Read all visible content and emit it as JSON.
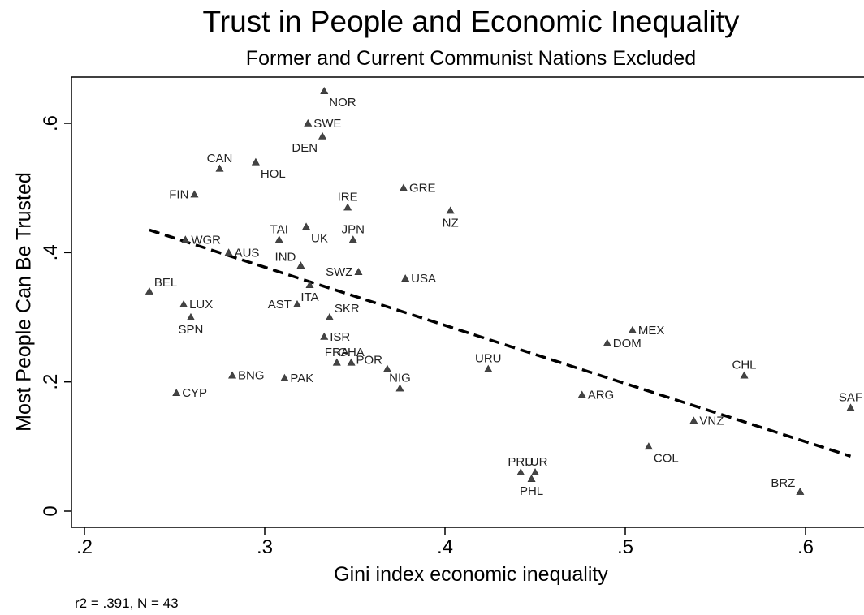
{
  "chart_data": {
    "type": "scatter",
    "title": "Trust in People and Economic Inequality",
    "subtitle": "Former and Current Communist Nations Excluded",
    "xlabel": "Gini index economic inequality",
    "ylabel": "Most People Can Be Trusted",
    "xlim": [
      0.18,
      0.63
    ],
    "ylim": [
      -0.03,
      0.67
    ],
    "xticks": [
      {
        "value": 0.2,
        "label": ".2"
      },
      {
        "value": 0.3,
        "label": ".3"
      },
      {
        "value": 0.4,
        "label": ".4"
      },
      {
        "value": 0.5,
        "label": ".5"
      },
      {
        "value": 0.6,
        "label": ".6"
      }
    ],
    "yticks": [
      {
        "value": 0,
        "label": "0"
      },
      {
        "value": 0.2,
        "label": ".2"
      },
      {
        "value": 0.4,
        "label": ".4"
      },
      {
        "value": 0.6,
        "label": ".6"
      }
    ],
    "grid": false,
    "points": [
      {
        "label": "NOR",
        "x": 0.333,
        "y": 0.65,
        "pos": "br"
      },
      {
        "label": "SWE",
        "x": 0.324,
        "y": 0.6,
        "pos": "r"
      },
      {
        "label": "DEN",
        "x": 0.332,
        "y": 0.58,
        "pos": "bl"
      },
      {
        "label": "CAN",
        "x": 0.275,
        "y": 0.53,
        "pos": "t"
      },
      {
        "label": "HOL",
        "x": 0.295,
        "y": 0.54,
        "pos": "br"
      },
      {
        "label": "FIN",
        "x": 0.261,
        "y": 0.49,
        "pos": "l"
      },
      {
        "label": "IRE",
        "x": 0.346,
        "y": 0.47,
        "pos": "t"
      },
      {
        "label": "GRE",
        "x": 0.377,
        "y": 0.5,
        "pos": "r"
      },
      {
        "label": "NZ",
        "x": 0.403,
        "y": 0.465,
        "pos": "b"
      },
      {
        "label": "TAI",
        "x": 0.308,
        "y": 0.42,
        "pos": "t"
      },
      {
        "label": "UK",
        "x": 0.323,
        "y": 0.44,
        "pos": "br"
      },
      {
        "label": "JPN",
        "x": 0.349,
        "y": 0.42,
        "pos": "t"
      },
      {
        "label": "WGR",
        "x": 0.256,
        "y": 0.42,
        "pos": "r"
      },
      {
        "label": "AUS",
        "x": 0.28,
        "y": 0.4,
        "pos": "r"
      },
      {
        "label": "IND",
        "x": 0.32,
        "y": 0.38,
        "pos": "tl"
      },
      {
        "label": "SWZ",
        "x": 0.352,
        "y": 0.37,
        "pos": "l"
      },
      {
        "label": "USA",
        "x": 0.378,
        "y": 0.36,
        "pos": "r"
      },
      {
        "label": "BEL",
        "x": 0.236,
        "y": 0.34,
        "pos": "tr"
      },
      {
        "label": "LUX",
        "x": 0.255,
        "y": 0.32,
        "pos": "r"
      },
      {
        "label": "ITA",
        "x": 0.325,
        "y": 0.35,
        "pos": "b"
      },
      {
        "label": "AST",
        "x": 0.318,
        "y": 0.32,
        "pos": "l"
      },
      {
        "label": "SKR",
        "x": 0.336,
        "y": 0.3,
        "pos": "tr"
      },
      {
        "label": "SPN",
        "x": 0.259,
        "y": 0.3,
        "pos": "b"
      },
      {
        "label": "ISR",
        "x": 0.333,
        "y": 0.27,
        "pos": "r"
      },
      {
        "label": "FRA",
        "x": 0.34,
        "y": 0.23,
        "pos": "t"
      },
      {
        "label": "GHA",
        "x": 0.348,
        "y": 0.23,
        "pos": "t"
      },
      {
        "label": "POR",
        "x": 0.368,
        "y": 0.22,
        "pos": "tl"
      },
      {
        "label": "NIG",
        "x": 0.375,
        "y": 0.19,
        "pos": "t"
      },
      {
        "label": "URU",
        "x": 0.424,
        "y": 0.22,
        "pos": "t"
      },
      {
        "label": "BNG",
        "x": 0.282,
        "y": 0.21,
        "pos": "r"
      },
      {
        "label": "PAK",
        "x": 0.311,
        "y": 0.206,
        "pos": "r"
      },
      {
        "label": "CYP",
        "x": 0.251,
        "y": 0.183,
        "pos": "r"
      },
      {
        "label": "MEX",
        "x": 0.504,
        "y": 0.28,
        "pos": "r"
      },
      {
        "label": "DOM",
        "x": 0.49,
        "y": 0.26,
        "pos": "r"
      },
      {
        "label": "CHL",
        "x": 0.566,
        "y": 0.21,
        "pos": "t"
      },
      {
        "label": "ARG",
        "x": 0.476,
        "y": 0.18,
        "pos": "r"
      },
      {
        "label": "SAF",
        "x": 0.625,
        "y": 0.16,
        "pos": "t"
      },
      {
        "label": "VNZ",
        "x": 0.538,
        "y": 0.14,
        "pos": "r"
      },
      {
        "label": "COL",
        "x": 0.513,
        "y": 0.1,
        "pos": "br"
      },
      {
        "label": "PRU",
        "x": 0.442,
        "y": 0.06,
        "pos": "t"
      },
      {
        "label": "TUR",
        "x": 0.45,
        "y": 0.06,
        "pos": "t"
      },
      {
        "label": "PHL",
        "x": 0.448,
        "y": 0.05,
        "pos": "b"
      },
      {
        "label": "BRZ",
        "x": 0.597,
        "y": 0.03,
        "pos": "tl"
      }
    ],
    "trendline": {
      "x": [
        0.236,
        0.625
      ],
      "y": [
        0.435,
        0.085
      ]
    },
    "annotation": "r2 = .391, N = 43"
  }
}
